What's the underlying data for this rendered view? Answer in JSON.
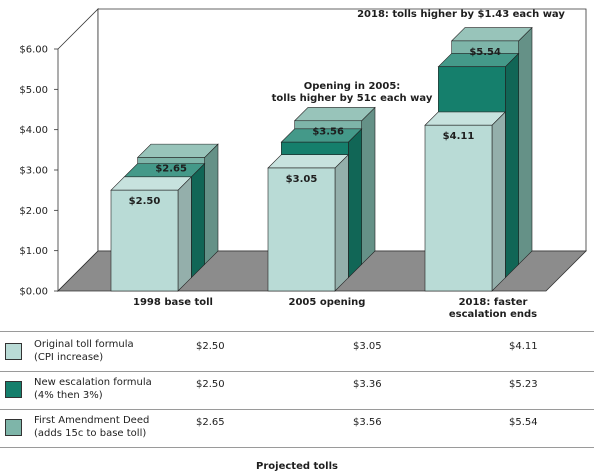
{
  "chart_data": {
    "type": "bar",
    "style": "3d-clustered",
    "categories": [
      "1998 base toll",
      "2005 opening",
      "2018: faster escalation ends"
    ],
    "category_lines": [
      [
        "1998 base toll"
      ],
      [
        "2005 opening"
      ],
      [
        "2018: faster",
        "escalation ends"
      ]
    ],
    "ylim": [
      0,
      6
    ],
    "yticks": [
      "$0.00",
      "$1.00",
      "$2.00",
      "$3.00",
      "$4.00",
      "$5.00",
      "$6.00"
    ],
    "grid": false,
    "series": [
      {
        "name": "Original toll formula (CPI increase)",
        "name_lines": [
          "Original toll formula",
          "(CPI increase)"
        ],
        "color": "#b9dbd6",
        "values": [
          2.5,
          3.05,
          4.11
        ],
        "display": [
          "$2.50",
          "$3.05",
          "$4.11"
        ],
        "labeled": [
          true,
          true,
          true
        ]
      },
      {
        "name": "New escalation formula (4% then 3%)",
        "name_lines": [
          "New escalation formula",
          "(4% then 3%)"
        ],
        "color": "#157f6c",
        "values": [
          2.5,
          3.36,
          5.23
        ],
        "display": [
          "$2.50",
          "$3.36",
          "$5.23"
        ],
        "labeled": [
          false,
          false,
          false
        ]
      },
      {
        "name": "First Amendment Deed (adds 15c to base toll)",
        "name_lines": [
          "First Amendment Deed",
          "(adds 15c to base toll)"
        ],
        "color": "#7eb5a9",
        "values": [
          2.65,
          3.56,
          5.54
        ],
        "display": [
          "$2.65",
          "$3.56",
          "$5.54"
        ],
        "labeled": [
          true,
          true,
          true
        ]
      }
    ],
    "annotations": [
      {
        "id": "annotation-2018",
        "lines": [
          "2018: tolls higher by $1.43 each way"
        ]
      },
      {
        "id": "annotation-2005",
        "lines": [
          "Opening in 2005:",
          "tolls higher by 51c each way"
        ]
      }
    ]
  },
  "footer": "Projected tolls"
}
